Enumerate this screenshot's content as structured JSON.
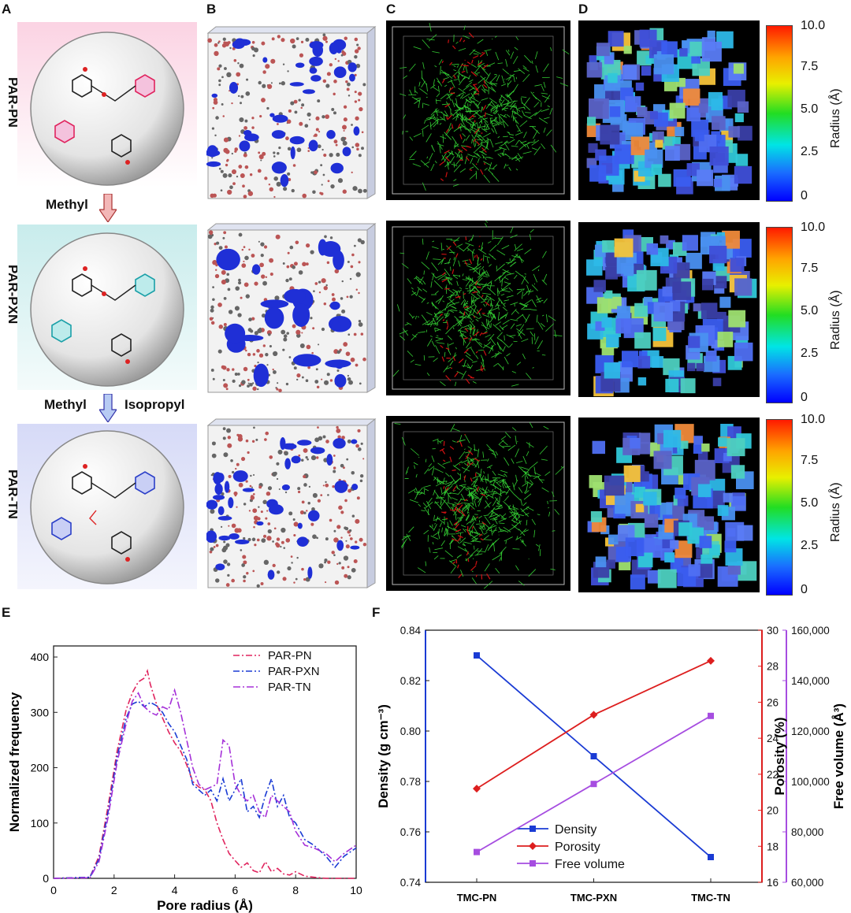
{
  "panels": {
    "A": "A",
    "B": "B",
    "C": "C",
    "D": "D",
    "E": "E",
    "F": "F"
  },
  "polymers": [
    "PAR-PN",
    "PAR-PXN",
    "PAR-TN"
  ],
  "transitions": {
    "t1": "Methyl",
    "t2a": "Methyl",
    "t2b": "Isopropyl"
  },
  "colorbar": {
    "label": "Radius (Å)",
    "ticks": [
      "10.0",
      "7.5",
      "5.0",
      "2.5",
      "0"
    ],
    "max": 10
  },
  "colors": {
    "pn": "#e0245e",
    "pxn": "#1a3bd4",
    "tn": "#a530d8",
    "density": "#1a3bd4",
    "porosity": "#dd1e1e",
    "free_volume": "#a64de0",
    "network_green": "#33cc33",
    "network_red": "#cc1111"
  },
  "chart_data": [
    {
      "type": "line",
      "title": "",
      "xlabel": "Pore radius (Å)",
      "ylabel": "Normalized frequency",
      "xlim": [
        0,
        10
      ],
      "ylim": [
        0,
        420
      ],
      "xticks": [
        "0",
        "2",
        "4",
        "6",
        "8",
        "10"
      ],
      "yticks": [
        "0",
        "100",
        "200",
        "300",
        "400"
      ],
      "legend_position": "top-right",
      "series": [
        {
          "name": "PAR-PN",
          "x": [
            0,
            1.2,
            1.5,
            1.8,
            2.1,
            2.4,
            2.6,
            2.8,
            3.0,
            3.1,
            3.2,
            3.4,
            3.6,
            3.8,
            4.0,
            4.2,
            4.4,
            4.6,
            4.8,
            5.0,
            5.2,
            5.4,
            5.6,
            5.8,
            6.0,
            6.2,
            6.4,
            6.6,
            6.8,
            7.0,
            7.2,
            7.4,
            7.6,
            7.8,
            8.0,
            8.3,
            8.6,
            9.0,
            10
          ],
          "y": [
            0,
            2,
            40,
            130,
            230,
            305,
            335,
            355,
            362,
            375,
            350,
            315,
            290,
            265,
            245,
            230,
            205,
            175,
            165,
            160,
            140,
            100,
            70,
            45,
            32,
            20,
            28,
            14,
            10,
            30,
            12,
            18,
            8,
            6,
            12,
            4,
            2,
            0,
            0
          ]
        },
        {
          "name": "PAR-PXN",
          "x": [
            0,
            1.2,
            1.5,
            1.8,
            2.1,
            2.4,
            2.6,
            2.8,
            3.0,
            3.2,
            3.4,
            3.6,
            3.8,
            4.0,
            4.2,
            4.4,
            4.6,
            4.8,
            5.0,
            5.2,
            5.4,
            5.6,
            5.8,
            6.0,
            6.2,
            6.4,
            6.6,
            6.8,
            7.0,
            7.2,
            7.4,
            7.6,
            7.8,
            8.0,
            8.3,
            8.6,
            9.0,
            9.3,
            9.6,
            10
          ],
          "y": [
            0,
            2,
            35,
            120,
            220,
            290,
            315,
            320,
            310,
            318,
            312,
            300,
            280,
            265,
            240,
            215,
            170,
            160,
            150,
            160,
            140,
            180,
            140,
            160,
            180,
            120,
            130,
            110,
            150,
            180,
            130,
            150,
            110,
            100,
            70,
            60,
            40,
            20,
            40,
            55
          ]
        },
        {
          "name": "PAR-TN",
          "x": [
            0,
            1.2,
            1.5,
            1.8,
            2.1,
            2.4,
            2.6,
            2.8,
            3.0,
            3.2,
            3.4,
            3.6,
            3.8,
            4.0,
            4.2,
            4.4,
            4.6,
            4.8,
            5.0,
            5.2,
            5.4,
            5.6,
            5.8,
            6.0,
            6.2,
            6.4,
            6.6,
            6.8,
            7.0,
            7.2,
            7.4,
            7.6,
            7.8,
            8.0,
            8.3,
            8.6,
            9.0,
            9.3,
            9.6,
            10
          ],
          "y": [
            0,
            1,
            30,
            110,
            210,
            280,
            320,
            335,
            310,
            300,
            295,
            310,
            305,
            340,
            300,
            250,
            200,
            170,
            160,
            165,
            170,
            250,
            240,
            170,
            150,
            140,
            150,
            120,
            110,
            150,
            140,
            130,
            120,
            85,
            60,
            55,
            45,
            30,
            45,
            60
          ]
        }
      ]
    },
    {
      "type": "line",
      "title": "",
      "categories": [
        "TMC-PN",
        "TMC-PXN",
        "TMC-TN"
      ],
      "legend_position": "bottom-center",
      "axes": [
        {
          "name": "Density",
          "label": "Density (g cm⁻³)",
          "side": "left",
          "lim": [
            0.74,
            0.84
          ],
          "ticks": [
            "0.74",
            "0.76",
            "0.78",
            "0.80",
            "0.82",
            "0.84"
          ]
        },
        {
          "name": "Porosity",
          "label": "Porosity (%)",
          "side": "right",
          "lim": [
            16,
            30
          ],
          "ticks": [
            "16",
            "18",
            "20",
            "22",
            "24",
            "26",
            "28",
            "30"
          ]
        },
        {
          "name": "Free volume",
          "label": "Free volume (Å³)",
          "side": "right-outer",
          "lim": [
            60000,
            160000
          ],
          "ticks": [
            "60,000",
            "80,000",
            "100,000",
            "120,000",
            "140,000",
            "160,000"
          ]
        }
      ],
      "series": [
        {
          "name": "Density",
          "axis": 0,
          "marker": "square",
          "values": [
            0.83,
            0.79,
            0.75
          ]
        },
        {
          "name": "Porosity",
          "axis": 1,
          "marker": "diamond",
          "values": [
            21.2,
            25.3,
            28.3
          ]
        },
        {
          "name": "Free volume",
          "axis": 2,
          "marker": "square",
          "values": [
            72000,
            99000,
            126000
          ]
        }
      ]
    }
  ]
}
